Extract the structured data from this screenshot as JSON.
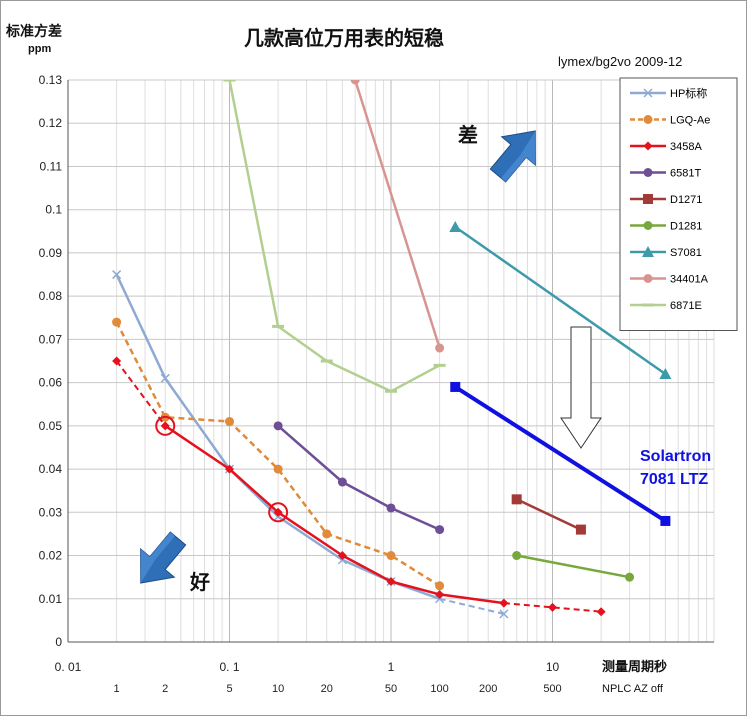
{
  "chart_data": {
    "type": "line",
    "title": "几款高位万用表的短稳",
    "credit": "lymex/bg2vo 2009-12",
    "ylabel": "标准方差",
    "yunit": "ppm",
    "xlabel": "测量周期秒",
    "x_scale": "log",
    "xlim": [
      0.01,
      100
    ],
    "ylim": [
      0,
      0.13
    ],
    "grid": true,
    "legend_position": "top-right",
    "x_ticks": [
      "0. 01",
      "0. 1",
      "1",
      "10"
    ],
    "y_ticks": [
      "0",
      "0.01",
      "0.02",
      "0.03",
      "0.04",
      "0.05",
      "0.06",
      "0.07",
      "0.08",
      "0.09",
      "0.1",
      "0.11",
      "0.12",
      "0.13"
    ],
    "nplc_ticks": [
      {
        "x": 0.02,
        "label": "1"
      },
      {
        "x": 0.04,
        "label": "2"
      },
      {
        "x": 0.1,
        "label": "5"
      },
      {
        "x": 0.2,
        "label": "10"
      },
      {
        "x": 0.4,
        "label": "20"
      },
      {
        "x": 1,
        "label": "50"
      },
      {
        "x": 2,
        "label": "100"
      },
      {
        "x": 4,
        "label": "200"
      },
      {
        "x": 10,
        "label": "500"
      }
    ],
    "nplc_caption": "NPLC  AZ  off",
    "series": [
      {
        "name": "HP标称",
        "color": "#8eaad4",
        "marker": "x",
        "x": [
          0.02,
          0.04,
          0.1,
          0.2,
          0.5,
          1,
          2
        ],
        "y": [
          0.085,
          0.061,
          0.04,
          0.029,
          0.019,
          0.014,
          0.01
        ],
        "ext_x": [
          2,
          5
        ],
        "ext_y": [
          0.01,
          0.0065
        ]
      },
      {
        "name": "LGQ-Ae",
        "color": "#e08a3a",
        "marker": "dot",
        "dashed": true,
        "x": [
          0.02,
          0.04,
          0.1,
          0.2,
          0.4,
          1,
          2
        ],
        "y": [
          0.074,
          0.052,
          0.051,
          0.04,
          0.025,
          0.02,
          0.013
        ]
      },
      {
        "name": "3458A",
        "color": "#e3121d",
        "marker": "diamond",
        "x": [
          0.04,
          0.1,
          0.2,
          0.5,
          1,
          2,
          5
        ],
        "y": [
          0.05,
          0.04,
          0.03,
          0.02,
          0.014,
          0.011,
          0.009
        ],
        "pre_x": [
          0.02,
          0.04
        ],
        "pre_y": [
          0.065,
          0.05
        ],
        "ext_x": [
          5,
          10,
          20
        ],
        "ext_y": [
          0.009,
          0.008,
          0.007
        ]
      },
      {
        "name": "6581T",
        "color": "#6e4f96",
        "marker": "dot",
        "x": [
          0.2,
          0.5,
          1,
          2
        ],
        "y": [
          0.05,
          0.037,
          0.031,
          0.026
        ]
      },
      {
        "name": "D1271",
        "color": "#a23b37",
        "marker": "square",
        "x": [
          6,
          15
        ],
        "y": [
          0.033,
          0.026
        ]
      },
      {
        "name": "D1281",
        "color": "#77a83b",
        "marker": "dot",
        "x": [
          6,
          30
        ],
        "y": [
          0.02,
          0.015
        ]
      },
      {
        "name": "S7081",
        "color": "#3d9aaa",
        "marker": "triangle",
        "x": [
          2.5,
          50
        ],
        "y": [
          0.096,
          0.062
        ]
      },
      {
        "name": "34401A",
        "color": "#d89490",
        "marker": "dot",
        "x": [
          0.6,
          2
        ],
        "y": [
          0.13,
          0.068
        ]
      },
      {
        "name": "6871E",
        "color": "#b3cf8f",
        "marker": "dash",
        "x": [
          0.1,
          0.2,
          0.4,
          1,
          2
        ],
        "y": [
          0.13,
          0.073,
          0.065,
          0.058,
          0.064
        ]
      }
    ],
    "annotations": {
      "solartron_label": [
        "Solartron",
        "7081 LTZ"
      ],
      "solartron_x": [
        2.5,
        50
      ],
      "solartron_y": [
        0.059,
        0.028
      ],
      "worse_label": "差",
      "better_label": "好",
      "highlight_points": [
        {
          "x": 0.04,
          "y": 0.05
        },
        {
          "x": 0.2,
          "y": 0.03
        }
      ]
    }
  }
}
